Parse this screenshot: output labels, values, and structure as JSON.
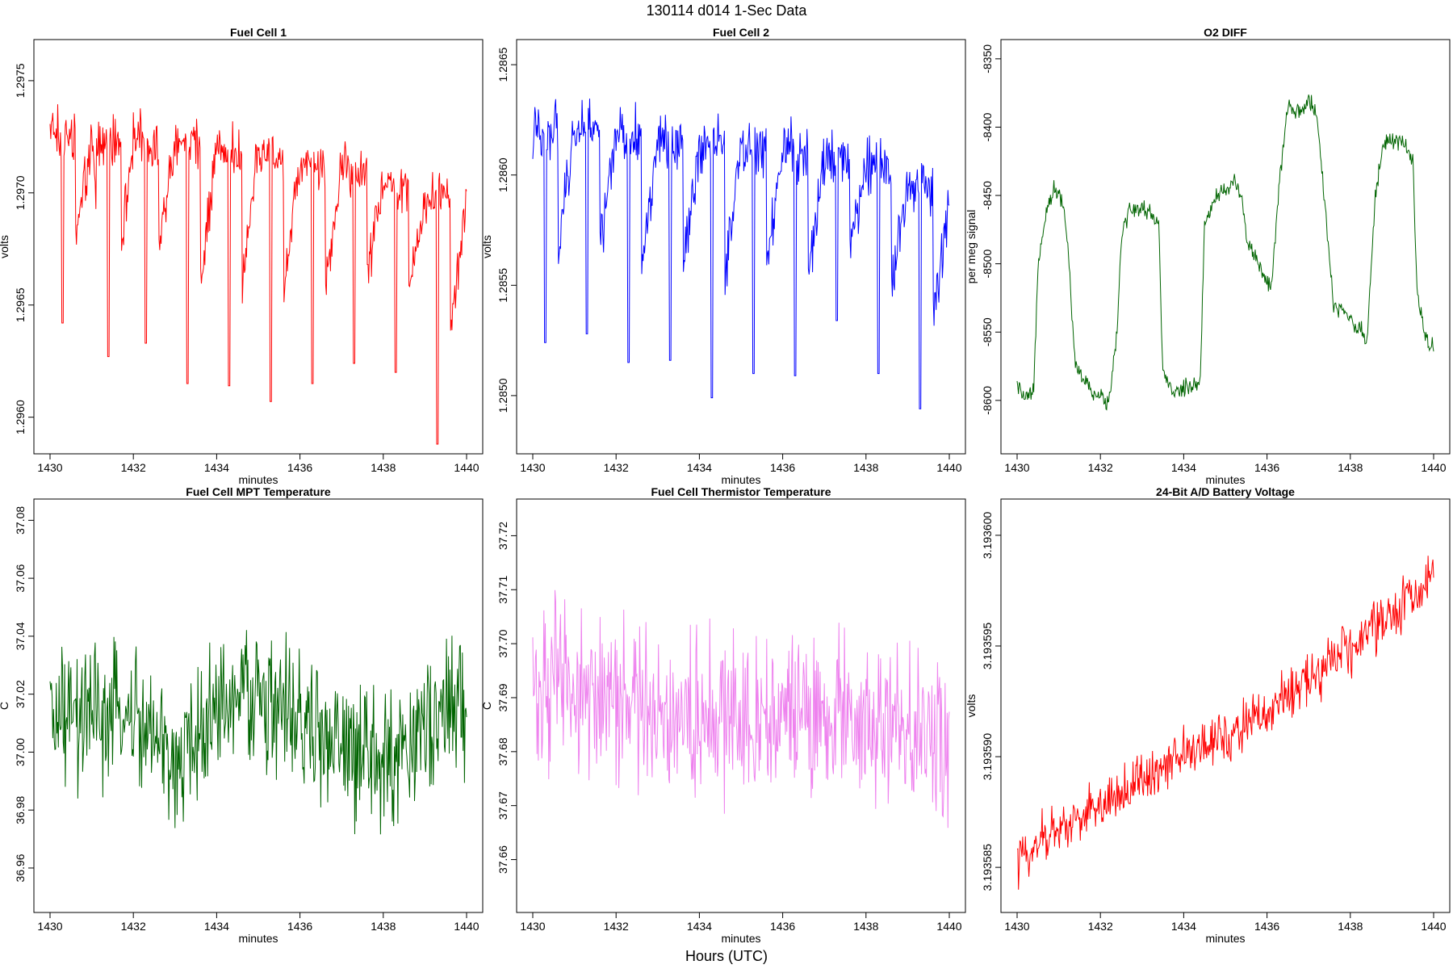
{
  "figure": {
    "title": "130114   d014   1-Sec Data",
    "xlabel": "Hours (UTC)"
  },
  "chart_data": [
    {
      "type": "line",
      "title": "Fuel Cell 1",
      "xlabel": "minutes",
      "ylabel": "volts",
      "color": "#ff0000",
      "xlim": [
        1430,
        1440
      ],
      "ylim": [
        1.29588,
        1.29764
      ],
      "xticks": [
        1430,
        1432,
        1434,
        1436,
        1438,
        1440
      ],
      "xtick_labels": [
        "1430",
        "1432",
        "1434",
        "1436",
        "1438",
        "1440"
      ],
      "yticks": [
        1.296,
        1.2965,
        1.297,
        1.2975
      ],
      "ytick_labels": [
        "1.2960",
        "1.2965",
        "1.2970",
        "1.2975"
      ],
      "series": [
        {
          "x": [
            1430,
            1430.3,
            1431,
            1431.4,
            1432,
            1432.3,
            1433,
            1433.3,
            1434,
            1434.3,
            1435,
            1435.3,
            1436,
            1436.3,
            1437,
            1437.3,
            1438,
            1438.3,
            1439,
            1439.3,
            1440
          ],
          "y": [
            1.29727,
            1.29642,
            1.29722,
            1.29627,
            1.29724,
            1.29633,
            1.29722,
            1.29615,
            1.2972,
            1.29614,
            1.29718,
            1.29607,
            1.29716,
            1.29615,
            1.29712,
            1.29624,
            1.29708,
            1.2962,
            1.29697,
            1.29587,
            1.297
          ]
        }
      ]
    },
    {
      "type": "line",
      "title": "Fuel Cell 2",
      "xlabel": "minutes",
      "ylabel": "volts",
      "color": "#0000ff",
      "xlim": [
        1430,
        1440
      ],
      "ylim": [
        1.28478,
        1.28657
      ],
      "xticks": [
        1430,
        1432,
        1434,
        1436,
        1438,
        1440
      ],
      "xtick_labels": [
        "1430",
        "1432",
        "1434",
        "1436",
        "1438",
        "1440"
      ],
      "yticks": [
        1.285,
        1.2855,
        1.286,
        1.2865
      ],
      "ytick_labels": [
        "1.2850",
        "1.2855",
        "1.2860",
        "1.2865"
      ],
      "series": [
        {
          "x": [
            1430,
            1430.3,
            1431,
            1431.3,
            1432,
            1432.3,
            1433,
            1433.3,
            1434,
            1434.3,
            1435,
            1435.3,
            1436,
            1436.3,
            1437,
            1437.3,
            1438,
            1438.3,
            1439,
            1439.3,
            1440
          ],
          "y": [
            1.28618,
            1.28524,
            1.2862,
            1.28528,
            1.28618,
            1.28515,
            1.28616,
            1.28516,
            1.28614,
            1.28499,
            1.28614,
            1.2851,
            1.28612,
            1.28509,
            1.28608,
            1.28534,
            1.28605,
            1.2851,
            1.28598,
            1.28494,
            1.2859
          ]
        }
      ]
    },
    {
      "type": "line",
      "title": "O2 DIFF",
      "xlabel": "minutes",
      "ylabel": "per meg signal",
      "color": "#006400",
      "xlim": [
        1430,
        1440
      ],
      "ylim": [
        -8632,
        -8343
      ],
      "xticks": [
        1430,
        1432,
        1434,
        1436,
        1438,
        1440
      ],
      "xtick_labels": [
        "1430",
        "1432",
        "1434",
        "1436",
        "1438",
        "1440"
      ],
      "yticks": [
        -8600,
        -8550,
        -8500,
        -8450,
        -8400,
        -8350
      ],
      "ytick_labels": [
        "-8600",
        "-8550",
        "-8500",
        "-8450",
        "-8400",
        "-8350"
      ],
      "series": [
        {
          "x": [
            1430,
            1430.2,
            1430.4,
            1430.5,
            1430.7,
            1430.9,
            1431.1,
            1431.2,
            1431.4,
            1431.8,
            1432.2,
            1432.4,
            1432.5,
            1432.7,
            1433.1,
            1433.4,
            1433.5,
            1433.7,
            1434.1,
            1434.4,
            1434.5,
            1434.8,
            1435.2,
            1435.4,
            1435.5,
            1435.8,
            1436.1,
            1436.3,
            1436.5,
            1436.8,
            1437.0,
            1437.2,
            1437.4,
            1437.6,
            1438.0,
            1438.4,
            1438.6,
            1438.8,
            1439.2,
            1439.5,
            1439.6,
            1439.8,
            1440
          ],
          "y": [
            -8590,
            -8600,
            -8595,
            -8500,
            -8460,
            -8445,
            -8455,
            -8480,
            -8575,
            -8595,
            -8600,
            -8550,
            -8480,
            -8460,
            -8460,
            -8470,
            -8580,
            -8595,
            -8590,
            -8585,
            -8470,
            -8450,
            -8440,
            -8450,
            -8480,
            -8500,
            -8520,
            -8440,
            -8385,
            -8390,
            -8380,
            -8390,
            -8460,
            -8530,
            -8540,
            -8555,
            -8450,
            -8410,
            -8410,
            -8425,
            -8520,
            -8555,
            -8560
          ]
        }
      ]
    },
    {
      "type": "line",
      "title": "Fuel Cell MPT Temperature",
      "xlabel": "minutes",
      "ylabel": "C",
      "color": "#006400",
      "xlim": [
        1430,
        1440
      ],
      "ylim": [
        36.948,
        37.084
      ],
      "xticks": [
        1430,
        1432,
        1434,
        1436,
        1438,
        1440
      ],
      "xtick_labels": [
        "1430",
        "1432",
        "1434",
        "1436",
        "1438",
        "1440"
      ],
      "yticks": [
        36.96,
        36.98,
        37.0,
        37.02,
        37.04,
        37.06,
        37.08
      ],
      "ytick_labels": [
        "36.96",
        "36.98",
        "37.00",
        "37.02",
        "37.04",
        "37.06",
        "37.08"
      ],
      "series": [
        {
          "x": [
            1430,
            1432,
            1433,
            1434,
            1435,
            1436,
            1437,
            1438,
            1439,
            1440
          ],
          "y": [
            37.01,
            37.012,
            36.995,
            37.015,
            37.02,
            37.01,
            37.0,
            36.995,
            37.01,
            37.015
          ]
        }
      ]
    },
    {
      "type": "line",
      "title": "Fuel Cell Thermistor Temperature",
      "xlabel": "minutes",
      "ylabel": "C",
      "color": "#ee82ee",
      "xlim": [
        1430,
        1440
      ],
      "ylim": [
        37.652,
        37.725
      ],
      "xticks": [
        1430,
        1432,
        1434,
        1436,
        1438,
        1440
      ],
      "xtick_labels": [
        "1430",
        "1432",
        "1434",
        "1436",
        "1438",
        "1440"
      ],
      "yticks": [
        37.66,
        37.67,
        37.68,
        37.69,
        37.7,
        37.71,
        37.72
      ],
      "ytick_labels": [
        "37.66",
        "37.67",
        "37.68",
        "37.69",
        "37.70",
        "37.71",
        "37.72"
      ],
      "series": [
        {
          "x": [
            1430,
            1431,
            1432,
            1433,
            1434,
            1435,
            1436,
            1437,
            1438,
            1439,
            1440
          ],
          "y": [
            37.693,
            37.691,
            37.689,
            37.688,
            37.687,
            37.687,
            37.686,
            37.686,
            37.685,
            37.684,
            37.683
          ]
        }
      ]
    },
    {
      "type": "line",
      "title": "24-Bit A/D Battery Voltage",
      "xlabel": "minutes",
      "ylabel": "volts",
      "color": "#ff0000",
      "xlim": [
        1430,
        1440
      ],
      "ylim": [
        3.1935834,
        3.1936012
      ],
      "xticks": [
        1430,
        1432,
        1434,
        1436,
        1438,
        1440
      ],
      "xtick_labels": [
        "1430",
        "1432",
        "1434",
        "1436",
        "1438",
        "1440"
      ],
      "yticks": [
        3.193585,
        3.19359,
        3.193595,
        3.1936
      ],
      "ytick_labels": [
        "3.193585",
        "3.193590",
        "3.193595",
        "3.193600"
      ],
      "series": [
        {
          "x": [
            1430,
            1431,
            1432,
            1433,
            1434,
            1435,
            1436,
            1437,
            1438,
            1439,
            1440
          ],
          "y": [
            3.1935853,
            3.1935868,
            3.1935878,
            3.1935889,
            3.1935901,
            3.193591,
            3.1935919,
            3.1935935,
            3.1935949,
            3.1935962,
            3.1935985
          ]
        }
      ]
    }
  ]
}
